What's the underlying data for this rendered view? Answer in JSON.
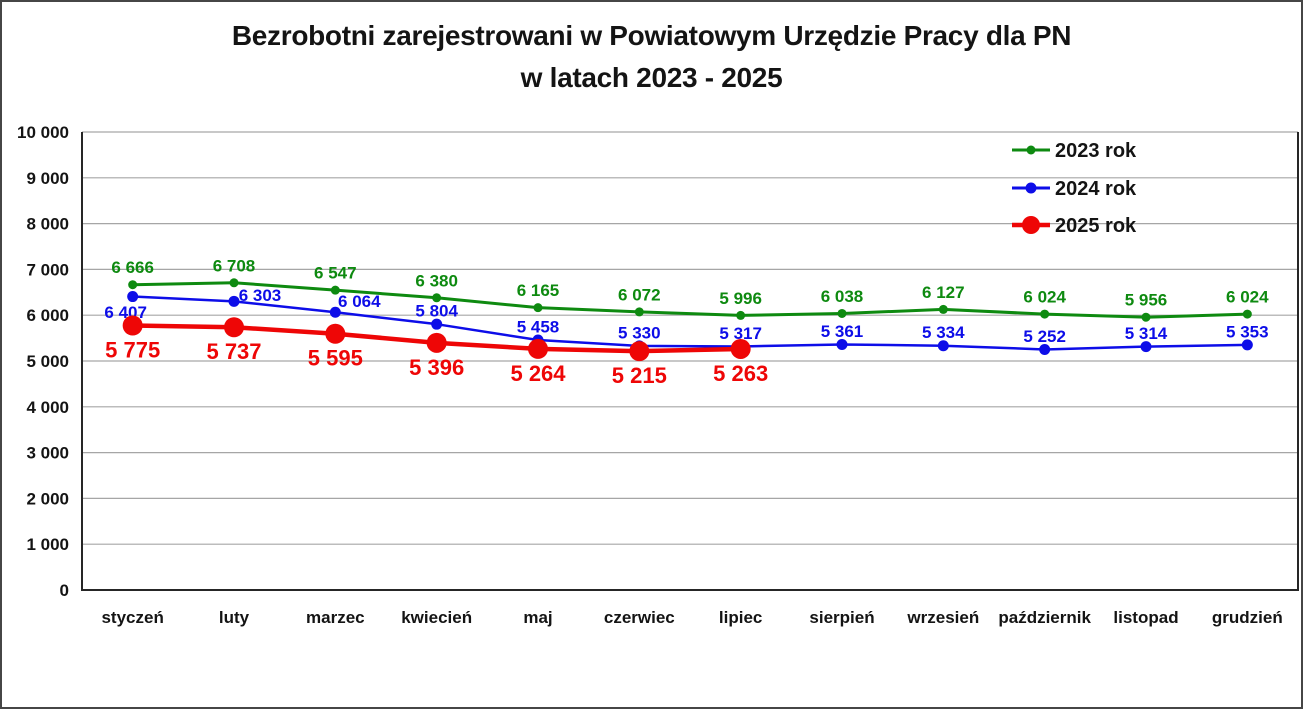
{
  "title": {
    "line1": "Bezrobotni zarejestrowani w Powiatowym Urzędzie Pracy dla PN",
    "line2": "w latach 2023 - 2025"
  },
  "colors": {
    "series_2023": "#0E8A10",
    "series_2024": "#0D0DE8",
    "series_2025": "#EE0606",
    "gridline": "#A6A6A6",
    "axis": "#262626",
    "frame_border": "#464646",
    "text": "#141414",
    "background": "#FFFFFF"
  },
  "chart_data": {
    "type": "line",
    "title": "Bezrobotni zarejestrowani w Powiatowym Urzędzie Pracy dla PN w latach 2023 - 2025",
    "xlabel": "",
    "ylabel": "",
    "grid": true,
    "legend_position": "top-right",
    "categories": [
      "styczeń",
      "luty",
      "marzec",
      "kwiecień",
      "maj",
      "czerwiec",
      "lipiec",
      "sierpień",
      "wrzesień",
      "październik",
      "listopad",
      "grudzień"
    ],
    "series": [
      {
        "name": "2023 rok",
        "color": "#0E8A10",
        "values": [
          6666,
          6708,
          6547,
          6380,
          6165,
          6072,
          5996,
          6038,
          6127,
          6024,
          5956,
          6024
        ],
        "label_position": "above",
        "marker_radius": 4.5,
        "line_width": 3,
        "label_font_size": 17,
        "label_overrides": {}
      },
      {
        "name": "2024 rok",
        "color": "#0D0DE8",
        "values": [
          6407,
          6303,
          6064,
          5804,
          5458,
          5330,
          5317,
          5361,
          5334,
          5252,
          5314,
          5353
        ],
        "label_position": "above",
        "marker_radius": 5.5,
        "line_width": 2.5,
        "label_font_size": 17,
        "label_overrides": {
          "0": {
            "position": "below",
            "dx": -7,
            "dy": 0
          },
          "1": {
            "dx": 26,
            "dy": 7
          },
          "2": {
            "dx": 24,
            "dy": 2
          }
        }
      },
      {
        "name": "2025 rok",
        "color": "#EE0606",
        "values": [
          5775,
          5737,
          5595,
          5396,
          5264,
          5215,
          5263
        ],
        "label_position": "below",
        "marker_radius": 10,
        "line_width": 4.5,
        "label_font_size": 22,
        "label_overrides": {}
      }
    ],
    "y_axis": {
      "min": 0,
      "max": 10000,
      "step": 1000,
      "tick_labels": [
        "0",
        "1 000",
        "2 000",
        "3 000",
        "4 000",
        "5 000",
        "6 000",
        "7 000",
        "8 000",
        "9 000",
        "10 000"
      ]
    }
  }
}
